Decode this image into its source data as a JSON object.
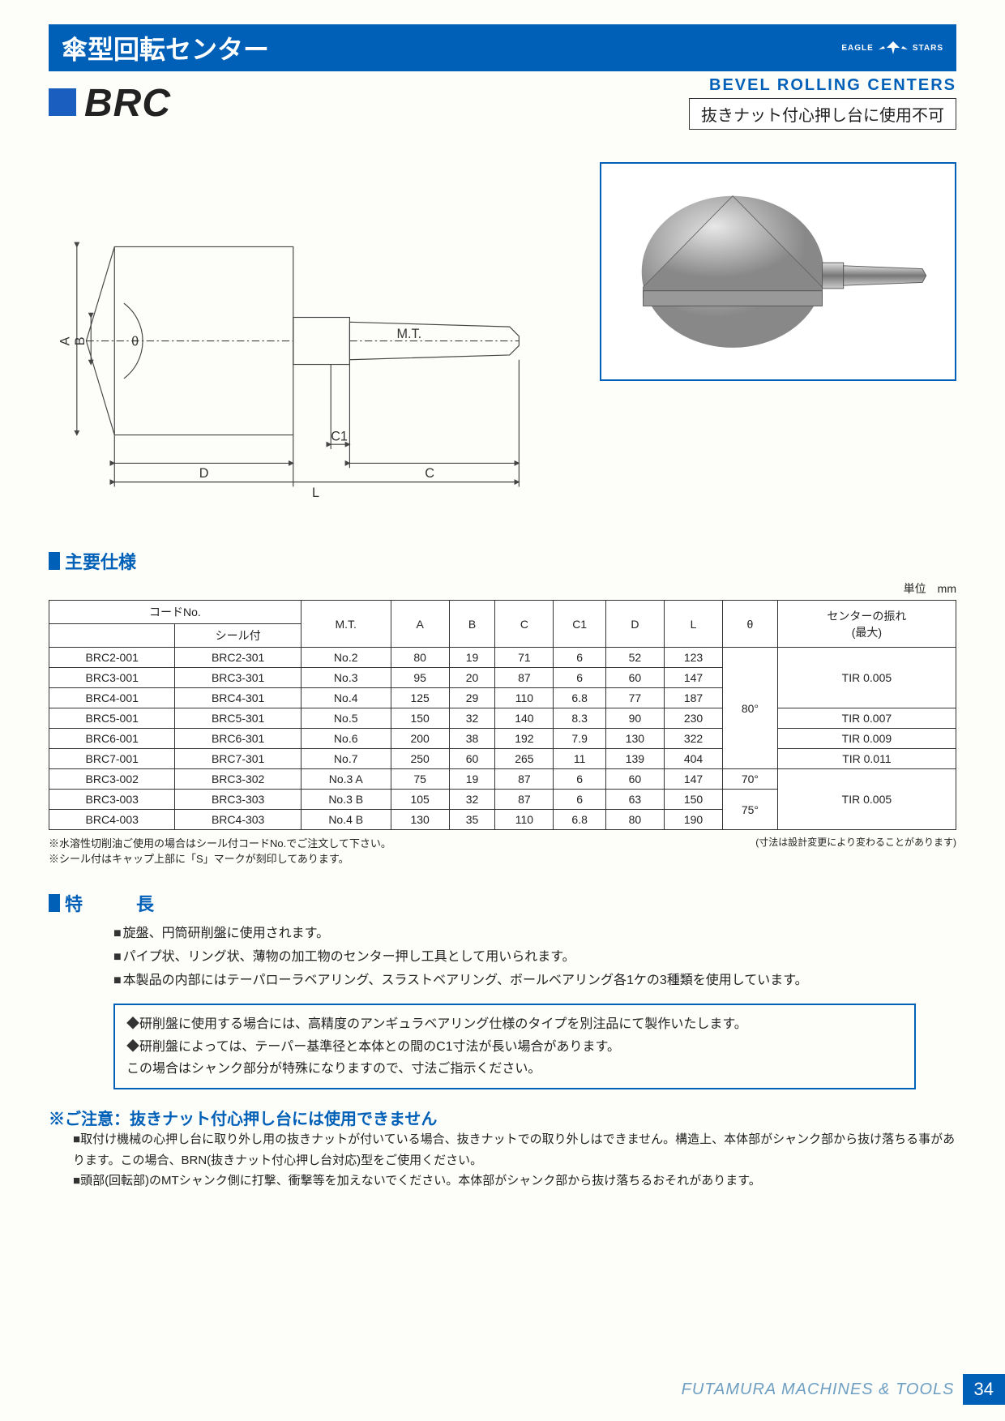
{
  "header": {
    "jp_title": "傘型回転センター",
    "brand_left": "EAGLE",
    "brand_right": "STARS"
  },
  "title": {
    "code": "BRC",
    "en": "BEVEL ROLLING CENTERS",
    "warn": "抜きナット付心押し台に使用不可"
  },
  "drawing": {
    "labels": {
      "mt": "M.T.",
      "A": "A",
      "B": "B",
      "theta": "θ",
      "C": "C",
      "C1": "C1",
      "D": "D",
      "L": "L"
    }
  },
  "spec": {
    "title": "主要仕様",
    "unit": "単位　mm",
    "headers": {
      "code": "コードNo.",
      "seal": "シール付",
      "mt": "M.T.",
      "A": "A",
      "B": "B",
      "C": "C",
      "C1": "C1",
      "D": "D",
      "L": "L",
      "theta": "θ",
      "runout": "センターの振れ\n(最大)"
    },
    "rows": [
      {
        "c1": "BRC2-001",
        "c2": "BRC2-301",
        "mt": "No.2",
        "A": "80",
        "B": "19",
        "C": "71",
        "C1_": "6",
        "D": "52",
        "L": "123",
        "theta": "",
        "tir": ""
      },
      {
        "c1": "BRC3-001",
        "c2": "BRC3-301",
        "mt": "No.3",
        "A": "95",
        "B": "20",
        "C": "87",
        "C1_": "6",
        "D": "60",
        "L": "147",
        "theta": "",
        "tir": "TIR 0.005"
      },
      {
        "c1": "BRC4-001",
        "c2": "BRC4-301",
        "mt": "No.4",
        "A": "125",
        "B": "29",
        "C": "110",
        "C1_": "6.8",
        "D": "77",
        "L": "187",
        "theta": "",
        "tir": ""
      },
      {
        "c1": "BRC5-001",
        "c2": "BRC5-301",
        "mt": "No.5",
        "A": "150",
        "B": "32",
        "C": "140",
        "C1_": "8.3",
        "D": "90",
        "L": "230",
        "theta": "80°",
        "tir": "TIR 0.007"
      },
      {
        "c1": "BRC6-001",
        "c2": "BRC6-301",
        "mt": "No.6",
        "A": "200",
        "B": "38",
        "C": "192",
        "C1_": "7.9",
        "D": "130",
        "L": "322",
        "theta": "",
        "tir": "TIR 0.009"
      },
      {
        "c1": "BRC7-001",
        "c2": "BRC7-301",
        "mt": "No.7",
        "A": "250",
        "B": "60",
        "C": "265",
        "C1_": "11",
        "D": "139",
        "L": "404",
        "theta": "",
        "tir": "TIR 0.011"
      },
      {
        "c1": "BRC3-002",
        "c2": "BRC3-302",
        "mt": "No.3 A",
        "A": "75",
        "B": "19",
        "C": "87",
        "C1_": "6",
        "D": "60",
        "L": "147",
        "theta": "70°",
        "tir": ""
      },
      {
        "c1": "BRC3-003",
        "c2": "BRC3-303",
        "mt": "No.3 B",
        "A": "105",
        "B": "32",
        "C": "87",
        "C1_": "6",
        "D": "63",
        "L": "150",
        "theta": "",
        "tir": "TIR 0.005"
      },
      {
        "c1": "BRC4-003",
        "c2": "BRC4-303",
        "mt": "No.4 B",
        "A": "130",
        "B": "35",
        "C": "110",
        "C1_": "6.8",
        "D": "80",
        "L": "190",
        "theta": "75°",
        "tir": ""
      }
    ],
    "theta_span1": "80°",
    "theta_row7": "70°",
    "theta_span2": "75°",
    "tir_span1": "TIR 0.005",
    "tir_row4": "TIR 0.007",
    "tir_row5": "TIR 0.009",
    "tir_row6": "TIR 0.011",
    "tir_span2": "TIR 0.005",
    "note1": "※水溶性切削油ご使用の場合はシール付コードNo.でご注文して下さい。",
    "note2": "※シール付はキャップ上部に「S」マークが刻印してあります。",
    "note_right": "(寸法は設計変更により変わることがあります)"
  },
  "features": {
    "title": "特　長",
    "items": [
      "旋盤、円筒研削盤に使用されます。",
      "パイプ状、リング状、薄物の加工物のセンター押し工具として用いられます。",
      "本製品の内部にはテーパローラベアリング、スラストベアリング、ボールベアリング各1ケの3種類を使用しています。"
    ],
    "box": [
      "研削盤に使用する場合には、高精度のアンギュラベアリング仕様のタイプを別注品にて製作いたします。",
      "研削盤によっては、テーパー基準径と本体との間のC1寸法が長い場合があります。\nこの場合はシャンク部分が特殊になりますので、寸法ご指示ください。"
    ]
  },
  "caution": {
    "title": "※ご注意：抜きナット付心押し台には使用できません",
    "items": [
      "取付け機械の心押し台に取り外し用の抜きナットが付いている場合、抜きナットでの取り外しはできません。構造上、本体部がシャンク部から抜け落ちる事があります。この場合、BRN(抜きナット付心押し台対応)型をご使用ください。",
      "頭部(回転部)のMTシャンク側に打撃、衝撃等を加えないでください。本体部がシャンク部から抜け落ちるおそれがあります。"
    ]
  },
  "footer": {
    "company": "FUTAMURA MACHINES & TOOLS",
    "page": "34"
  }
}
